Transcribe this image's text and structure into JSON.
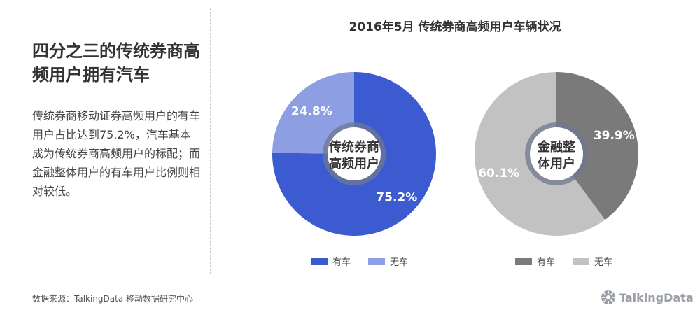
{
  "headline": "四分之三的传统券商高频用户拥有汽车",
  "description": "传统券商移动证券高频用户的有车用户占比达到75.2%，汽车基本成为传统券商高频用户的标配；而金融整体用户的有车用户比例则相对较低。",
  "source": "数据来源：TalkingData 移动数据研究中心",
  "logo": "TalkingData",
  "chart_data": [
    {
      "type": "pie",
      "variant": "donut",
      "title": "2016年5月  传统券商高频用户车辆状况",
      "center_label": [
        "传统券商",
        "高频用户"
      ],
      "categories": [
        "有车",
        "无车"
      ],
      "values": [
        75.2,
        24.8
      ],
      "labels": [
        "75.2%",
        "24.8%"
      ],
      "colors": [
        "#3d5bd1",
        "#8d9ee2"
      ],
      "legend": "bottom"
    },
    {
      "type": "pie",
      "variant": "donut",
      "center_label": [
        "金融整",
        "体用户"
      ],
      "categories": [
        "有车",
        "无车"
      ],
      "values": [
        39.9,
        60.1
      ],
      "labels": [
        "39.9%",
        "60.1%"
      ],
      "colors": [
        "#7a7a7a",
        "#c2c2c2"
      ],
      "legend": "bottom"
    }
  ]
}
